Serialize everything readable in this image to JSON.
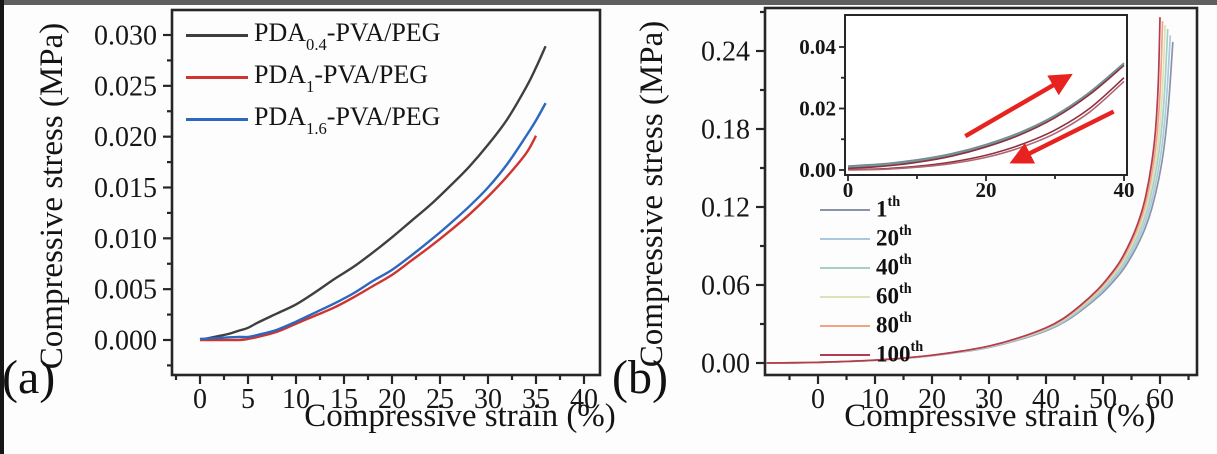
{
  "figure": {
    "panel_a_label": "(a)",
    "panel_b_label": "(b)",
    "background": "#fdfdfd",
    "top_border_color": "#5f5f5f",
    "left_border_color": "#161616",
    "axis_color": "#262626",
    "text_color": "#161616"
  },
  "chart_data": [
    {
      "id": "a",
      "type": "line",
      "xlabel": "Compressive strain (%)",
      "ylabel": "Compressive stress (MPa)",
      "xlim": [
        -2.917,
        41.667
      ],
      "ylim": [
        -0.003443,
        0.032459
      ],
      "x_ticks": {
        "values": [
          0,
          5,
          10,
          15,
          20,
          25,
          30,
          35,
          40
        ],
        "labels": [
          "0",
          "5",
          "10",
          "15",
          "20",
          "25",
          "30",
          "35",
          "40"
        ]
      },
      "x_minor": [
        -2.5,
        2.5,
        7.5,
        12.5,
        17.5,
        22.5,
        27.5,
        32.5,
        37.5
      ],
      "y_ticks": {
        "values": [
          0,
          0.005,
          0.01,
          0.015,
          0.02,
          0.025,
          0.03
        ],
        "labels": [
          "0.000",
          "0.005",
          "0.010",
          "0.015",
          "0.020",
          "0.025",
          "0.030"
        ]
      },
      "y_minor": [
        -0.0025,
        0.0025,
        0.0075,
        0.0125,
        0.0175,
        0.0225,
        0.0275
      ],
      "grid": false,
      "legend_position": "top-left",
      "series": [
        {
          "name": "PDA0.4-PVA/PEG",
          "label": {
            "prefix": "PDA",
            "sub": "0.4",
            "suffix": "-PVA/PEG"
          },
          "color": "#3f3f3f",
          "points": [
            [
              0,
              0
            ],
            [
              1,
              0.0002
            ],
            [
              2,
              0.0004
            ],
            [
              3,
              0.0006
            ],
            [
              4,
              0.0009
            ],
            [
              5,
              0.0012
            ],
            [
              6,
              0.0017
            ],
            [
              8,
              0.0026
            ],
            [
              10,
              0.0035
            ],
            [
              12,
              0.0047
            ],
            [
              14,
              0.006
            ],
            [
              16,
              0.0072
            ],
            [
              18,
              0.0086
            ],
            [
              20,
              0.0101
            ],
            [
              22,
              0.0117
            ],
            [
              24,
              0.0133
            ],
            [
              26,
              0.0151
            ],
            [
              28,
              0.017
            ],
            [
              30,
              0.0192
            ],
            [
              32,
              0.0217
            ],
            [
              34,
              0.0249
            ],
            [
              35,
              0.0268
            ],
            [
              36,
              0.0289
            ]
          ]
        },
        {
          "name": "PDA1-PVA/PEG",
          "label": {
            "prefix": "PDA",
            "sub": "1",
            "suffix": "-PVA/PEG"
          },
          "color": "#d0342e",
          "points": [
            [
              0,
              0
            ],
            [
              2,
              0
            ],
            [
              4,
              0
            ],
            [
              5,
              0.0001
            ],
            [
              6,
              0.0003
            ],
            [
              8,
              0.0008
            ],
            [
              10,
              0.0016
            ],
            [
              12,
              0.0024
            ],
            [
              14,
              0.0032
            ],
            [
              16,
              0.0042
            ],
            [
              18,
              0.0053
            ],
            [
              20,
              0.0064
            ],
            [
              22,
              0.0078
            ],
            [
              24,
              0.0092
            ],
            [
              26,
              0.0107
            ],
            [
              28,
              0.0123
            ],
            [
              30,
              0.0141
            ],
            [
              32,
              0.0161
            ],
            [
              34,
              0.0184
            ],
            [
              35,
              0.0201
            ]
          ]
        },
        {
          "name": "PDA1.6-PVA/PEG",
          "label": {
            "prefix": "PDA",
            "sub": "1.6",
            "suffix": "-PVA/PEG"
          },
          "color": "#2c68c0",
          "points": [
            [
              0,
              0.0001
            ],
            [
              2,
              0.0002
            ],
            [
              4,
              0.0003
            ],
            [
              5,
              0.0003
            ],
            [
              6,
              0.0005
            ],
            [
              8,
              0.001
            ],
            [
              10,
              0.0018
            ],
            [
              12,
              0.0027
            ],
            [
              14,
              0.0036
            ],
            [
              16,
              0.0046
            ],
            [
              18,
              0.0058
            ],
            [
              20,
              0.0069
            ],
            [
              22,
              0.0083
            ],
            [
              24,
              0.0098
            ],
            [
              26,
              0.0114
            ],
            [
              28,
              0.0131
            ],
            [
              30,
              0.015
            ],
            [
              32,
              0.0173
            ],
            [
              34,
              0.0201
            ],
            [
              35,
              0.0216
            ],
            [
              36,
              0.0233
            ]
          ]
        }
      ]
    },
    {
      "id": "b",
      "type": "line",
      "xlabel": "Compressive strain (%)",
      "ylabel": "Compressive stress (MPa)",
      "xlim": [
        -9.3,
        66.49
      ],
      "ylim": [
        -0.009231,
        0.273077
      ],
      "x_ticks": {
        "values": [
          0,
          10,
          20,
          30,
          40,
          50,
          60
        ],
        "labels": [
          "0",
          "10",
          "20",
          "30",
          "40",
          "50",
          "60"
        ]
      },
      "x_minor": [
        -5,
        5,
        15,
        25,
        35,
        45,
        55,
        65
      ],
      "y_ticks": {
        "values": [
          0,
          0.06,
          0.12,
          0.18,
          0.24
        ],
        "labels": [
          "0.00",
          "0.06",
          "0.12",
          "0.18",
          "0.24"
        ]
      },
      "y_minor": [
        0.03,
        0.09,
        0.15,
        0.21,
        0.27
      ],
      "grid": false,
      "legend_position": "center-left",
      "cycle_base_points": [
        [
          -9,
          0
        ],
        [
          -4,
          0.0002
        ],
        [
          0,
          0.0005
        ],
        [
          5,
          0.0012
        ],
        [
          10,
          0.0022
        ],
        [
          15,
          0.0038
        ],
        [
          20,
          0.006
        ],
        [
          25,
          0.009
        ],
        [
          30,
          0.013
        ],
        [
          35,
          0.019
        ],
        [
          40,
          0.027
        ],
        [
          43,
          0.034
        ],
        [
          46,
          0.044
        ],
        [
          49,
          0.056
        ],
        [
          51,
          0.066
        ],
        [
          53,
          0.078
        ],
        [
          55,
          0.095
        ],
        [
          56.5,
          0.112
        ],
        [
          57.5,
          0.128
        ],
        [
          58.5,
          0.152
        ],
        [
          59.2,
          0.178
        ],
        [
          59.7,
          0.215
        ],
        [
          60,
          0.265
        ]
      ],
      "base_peak": 0.265,
      "series": [
        {
          "name": "1th",
          "label": {
            "num": "1",
            "sup": "th"
          },
          "color": "#8b94a6",
          "dx": 2.25,
          "peak": 0.247
        },
        {
          "name": "20th",
          "label": {
            "num": "20",
            "sup": "th"
          },
          "color": "#a9c9e0",
          "dx": 1.8,
          "peak": 0.252
        },
        {
          "name": "40th",
          "label": {
            "num": "40",
            "sup": "th"
          },
          "color": "#a6d1c0",
          "dx": 1.35,
          "peak": 0.257
        },
        {
          "name": "60th",
          "label": {
            "num": "60",
            "sup": "th"
          },
          "color": "#dde0ba",
          "dx": 0.9,
          "peak": 0.26
        },
        {
          "name": "80th",
          "label": {
            "num": "80",
            "sup": "th"
          },
          "color": "#f2a482",
          "dx": 0.45,
          "peak": 0.263
        },
        {
          "name": "100th",
          "label": {
            "num": "100",
            "sup": "th"
          },
          "color": "#b23c50",
          "dx": 0.0,
          "peak": 0.266
        }
      ]
    },
    {
      "id": "b-inset",
      "type": "line",
      "xlabel": "",
      "ylabel": "",
      "xlim": [
        -0.435,
        40.435
      ],
      "ylim": [
        -0.001626,
        0.050407
      ],
      "x_ticks": {
        "values": [
          0,
          20,
          40
        ],
        "labels": [
          "0",
          "20",
          "40"
        ]
      },
      "x_minor": [
        10,
        30
      ],
      "y_ticks": {
        "values": [
          0,
          0.02,
          0.04
        ],
        "labels": [
          "0.00",
          "0.02",
          "0.04"
        ]
      },
      "y_minor": [
        0.01,
        0.03
      ],
      "grid": false,
      "series": [
        {
          "name": "loading-gray",
          "color": "#7c8698",
          "points": [
            [
              0,
              0.0013
            ],
            [
              5,
              0.002
            ],
            [
              10,
              0.0033
            ],
            [
              15,
              0.0053
            ],
            [
              20,
              0.0083
            ],
            [
              25,
              0.0123
            ],
            [
              30,
              0.0178
            ],
            [
              35,
              0.0253
            ],
            [
              40,
              0.0348
            ]
          ]
        },
        {
          "name": "loading-teal",
          "color": "#66a093",
          "points": [
            [
              0,
              0.0009
            ],
            [
              5,
              0.0016
            ],
            [
              10,
              0.0029
            ],
            [
              15,
              0.0049
            ],
            [
              20,
              0.0079
            ],
            [
              25,
              0.0119
            ],
            [
              30,
              0.0174
            ],
            [
              35,
              0.0249
            ],
            [
              40,
              0.0344
            ]
          ]
        },
        {
          "name": "loading-darkred",
          "color": "#8e3040",
          "points": [
            [
              0,
              0.0005
            ],
            [
              5,
              0.0012
            ],
            [
              10,
              0.0025
            ],
            [
              15,
              0.0045
            ],
            [
              20,
              0.0075
            ],
            [
              25,
              0.0115
            ],
            [
              30,
              0.017
            ],
            [
              35,
              0.0245
            ],
            [
              40,
              0.034
            ]
          ]
        },
        {
          "name": "unloading-darkred",
          "color": "#8e3040",
          "points": [
            [
              0,
              0.0001
            ],
            [
              5,
              0.0004
            ],
            [
              10,
              0.0012
            ],
            [
              15,
              0.0026
            ],
            [
              20,
              0.0048
            ],
            [
              25,
              0.0082
            ],
            [
              30,
              0.013
            ],
            [
              35,
              0.02
            ],
            [
              40,
              0.03
            ]
          ]
        },
        {
          "name": "unloading-maroon",
          "color": "#b06573",
          "points": [
            [
              0,
              0
            ],
            [
              5,
              0.0002
            ],
            [
              10,
              0.0009
            ],
            [
              15,
              0.0021
            ],
            [
              20,
              0.0041
            ],
            [
              25,
              0.0073
            ],
            [
              30,
              0.0119
            ],
            [
              35,
              0.0188
            ],
            [
              40,
              0.0288
            ]
          ]
        }
      ],
      "annotations": {
        "arrow_color": "#e8231f",
        "arrows": [
          {
            "name": "loading-arrow",
            "from": [
              17,
              0.011
            ],
            "to": [
              32,
              0.0305
            ]
          },
          {
            "name": "unloading-arrow",
            "from": [
              38.5,
              0.019
            ],
            "to": [
              24,
              0.0028
            ]
          }
        ]
      }
    }
  ]
}
